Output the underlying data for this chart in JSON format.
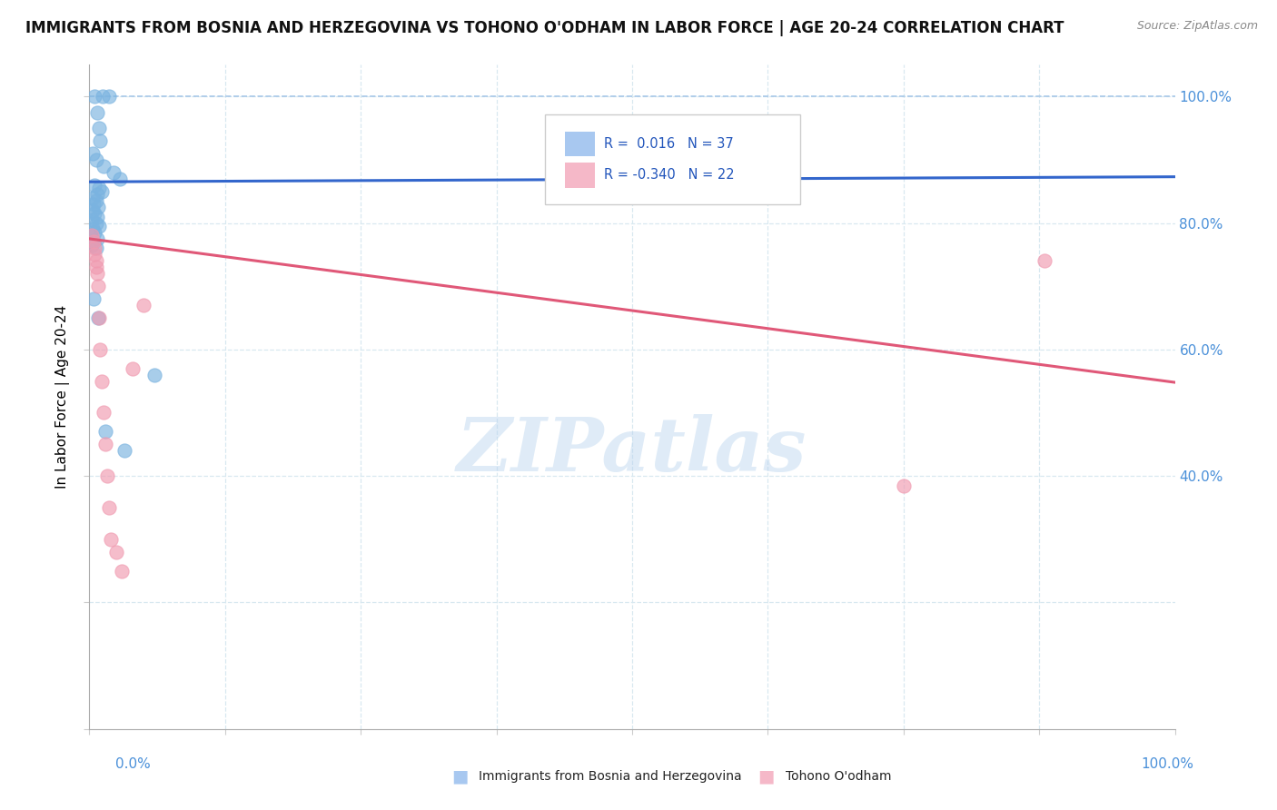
{
  "title": "IMMIGRANTS FROM BOSNIA AND HERZEGOVINA VS TOHONO O'ODHAM IN LABOR FORCE | AGE 20-24 CORRELATION CHART",
  "source": "Source: ZipAtlas.com",
  "ylabel": "In Labor Force | Age 20-24",
  "watermark": "ZIPatlas",
  "bg_color": "#ffffff",
  "grid_color": "#d8e8f0",
  "title_fontsize": 12.5,
  "axis_label_fontsize": 11,
  "tick_fontsize": 10,
  "scatter_size": 120,
  "blue_dot_color": "#7ab3e0",
  "pink_dot_color": "#f09ab0",
  "blue_line_color": "#3366cc",
  "pink_line_color": "#e05878",
  "blue_trend_y_start": 0.865,
  "blue_trend_y_end": 0.873,
  "pink_trend_y_start": 0.775,
  "pink_trend_y_end": 0.548,
  "xlim": [
    0.0,
    1.0
  ],
  "ylim": [
    0.0,
    1.05
  ],
  "right_ytick_labels": [
    "40.0%",
    "60.0%",
    "80.0%",
    "100.0%"
  ],
  "right_ytick_values": [
    0.4,
    0.6,
    0.8,
    1.0
  ],
  "legend_blue_text": "R =  0.016   N = 37",
  "legend_pink_text": "R = -0.340   N = 22",
  "bottom_legend_blue": "Immigrants from Bosnia and Herzegovina",
  "bottom_legend_pink": "Tohono O'odham",
  "blue_scatter_x": [
    0.005,
    0.012,
    0.018,
    0.007,
    0.009,
    0.003,
    0.006,
    0.013,
    0.022,
    0.028,
    0.005,
    0.009,
    0.011,
    0.007,
    0.003,
    0.006,
    0.004,
    0.008,
    0.003,
    0.005,
    0.007,
    0.002,
    0.006,
    0.009,
    0.003,
    0.005,
    0.001,
    0.007,
    0.004,
    0.002,
    0.006,
    0.004,
    0.008,
    0.015,
    0.032,
    0.06,
    0.01
  ],
  "blue_scatter_y": [
    1.0,
    1.0,
    1.0,
    0.975,
    0.95,
    0.91,
    0.9,
    0.89,
    0.88,
    0.87,
    0.86,
    0.855,
    0.85,
    0.845,
    0.84,
    0.835,
    0.83,
    0.825,
    0.82,
    0.815,
    0.81,
    0.805,
    0.8,
    0.795,
    0.79,
    0.785,
    0.78,
    0.775,
    0.77,
    0.765,
    0.76,
    0.68,
    0.65,
    0.47,
    0.44,
    0.56,
    0.93
  ],
  "pink_scatter_x": [
    0.002,
    0.004,
    0.005,
    0.005,
    0.006,
    0.006,
    0.007,
    0.008,
    0.009,
    0.01,
    0.011,
    0.013,
    0.015,
    0.016,
    0.018,
    0.02,
    0.025,
    0.03,
    0.04,
    0.05,
    0.75,
    0.88
  ],
  "pink_scatter_y": [
    0.78,
    0.77,
    0.76,
    0.75,
    0.74,
    0.73,
    0.72,
    0.7,
    0.65,
    0.6,
    0.55,
    0.5,
    0.45,
    0.4,
    0.35,
    0.3,
    0.28,
    0.25,
    0.57,
    0.67,
    0.385,
    0.74
  ]
}
